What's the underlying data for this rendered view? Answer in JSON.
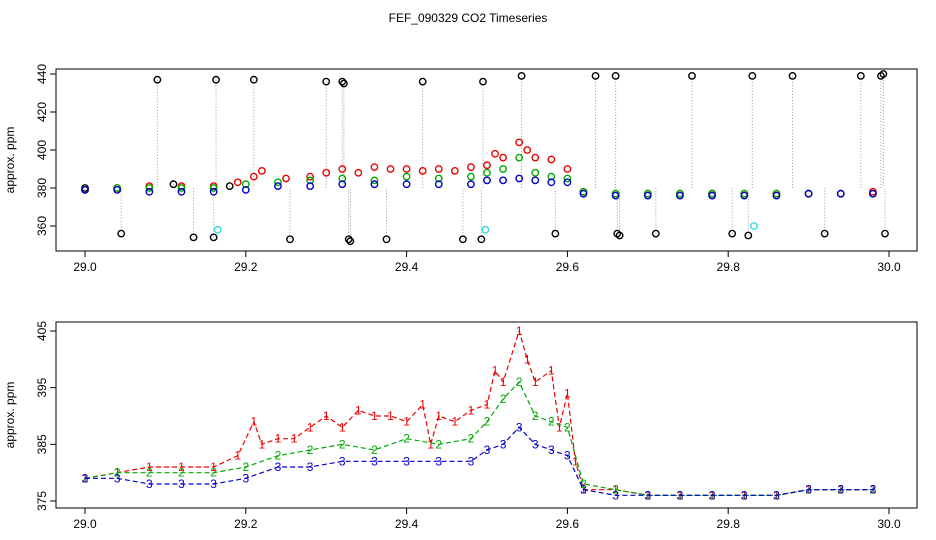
{
  "chart_data": [
    {
      "type": "scatter",
      "title": "FEF_090329  CO2 Timeseries",
      "xlabel": "",
      "ylabel": "approx. ppm",
      "xlim": [
        29.0,
        30.0
      ],
      "ylim": [
        347,
        442
      ],
      "xticks": [
        "29.0",
        "29.2",
        "29.4",
        "29.6",
        "29.8",
        "30.0"
      ],
      "yticks": [
        "360",
        "380",
        "400",
        "420",
        "440"
      ],
      "series": [
        {
          "name": "black",
          "color": "#000000",
          "x": [
            29.0,
            29.045,
            29.09,
            29.11,
            29.135,
            29.16,
            29.163,
            29.18,
            29.21,
            29.255,
            29.3,
            29.32,
            29.322,
            29.328,
            29.33,
            29.375,
            29.42,
            29.47,
            29.493,
            29.495,
            29.543,
            29.585,
            29.635,
            29.66,
            29.662,
            29.665,
            29.71,
            29.755,
            29.78,
            29.805,
            29.825,
            29.83,
            29.88,
            29.92,
            29.965,
            29.99,
            29.993,
            29.995
          ],
          "y": [
            380,
            356,
            437,
            382,
            354,
            354,
            437,
            381,
            437,
            353,
            436,
            436,
            435,
            353,
            352,
            353,
            436,
            353,
            353,
            436,
            439,
            356,
            439,
            439,
            356,
            355,
            356,
            439,
            377,
            356,
            355,
            439,
            439,
            356,
            439,
            439,
            440,
            356
          ]
        },
        {
          "name": "cyan",
          "color": "#33dddd",
          "x": [
            29.165,
            29.498,
            29.832
          ],
          "y": [
            358,
            358,
            360
          ]
        },
        {
          "name": "red",
          "color": "#ee0000",
          "x": [
            29.0,
            29.04,
            29.08,
            29.12,
            29.16,
            29.19,
            29.21,
            29.22,
            29.25,
            29.28,
            29.3,
            29.32,
            29.34,
            29.36,
            29.38,
            29.4,
            29.42,
            29.44,
            29.46,
            29.48,
            29.5,
            29.51,
            29.52,
            29.54,
            29.55,
            29.56,
            29.58,
            29.6,
            29.62,
            29.66,
            29.7,
            29.74,
            29.78,
            29.82,
            29.86,
            29.9,
            29.94,
            29.98
          ],
          "y": [
            379,
            380,
            381,
            381,
            381,
            383,
            386,
            389,
            385,
            386,
            388,
            390,
            388,
            391,
            390,
            390,
            389,
            390,
            389,
            391,
            392,
            398,
            396,
            404,
            400,
            396,
            395,
            390,
            378,
            377,
            377,
            377,
            377,
            377,
            377,
            377,
            377,
            378
          ]
        },
        {
          "name": "green",
          "color": "#00aa00",
          "x": [
            29.0,
            29.04,
            29.08,
            29.12,
            29.16,
            29.2,
            29.24,
            29.28,
            29.32,
            29.36,
            29.4,
            29.44,
            29.48,
            29.5,
            29.52,
            29.54,
            29.56,
            29.58,
            29.6,
            29.62,
            29.66,
            29.7,
            29.74,
            29.78,
            29.82,
            29.86,
            29.9,
            29.94,
            29.98
          ],
          "y": [
            379,
            380,
            380,
            380,
            380,
            382,
            383,
            384,
            385,
            384,
            386,
            385,
            386,
            388,
            390,
            396,
            388,
            386,
            385,
            378,
            377,
            377,
            377,
            377,
            377,
            377,
            377,
            377,
            377
          ]
        },
        {
          "name": "blue",
          "color": "#0000cc",
          "x": [
            29.0,
            29.04,
            29.08,
            29.12,
            29.16,
            29.2,
            29.24,
            29.28,
            29.32,
            29.36,
            29.4,
            29.44,
            29.48,
            29.5,
            29.52,
            29.54,
            29.56,
            29.58,
            29.6,
            29.62,
            29.66,
            29.7,
            29.74,
            29.78,
            29.82,
            29.86,
            29.9,
            29.94,
            29.98
          ],
          "y": [
            379,
            379,
            378,
            378,
            378,
            379,
            381,
            381,
            382,
            382,
            382,
            382,
            382,
            384,
            384,
            385,
            384,
            383,
            383,
            377,
            376,
            376,
            376,
            376,
            376,
            376,
            377,
            377,
            377
          ]
        }
      ]
    },
    {
      "type": "line",
      "title": "",
      "xlabel": "",
      "ylabel": "approx. ppm",
      "xlim": [
        29.0,
        30.0
      ],
      "ylim": [
        375,
        406
      ],
      "xticks": [
        "29.0",
        "29.2",
        "29.4",
        "29.6",
        "29.8",
        "30.0"
      ],
      "yticks": [
        "375",
        "385",
        "395",
        "405"
      ],
      "series": [
        {
          "name": "1",
          "color": "#ee0000",
          "x": [
            29.0,
            29.04,
            29.08,
            29.12,
            29.16,
            29.19,
            29.21,
            29.22,
            29.24,
            29.26,
            29.28,
            29.3,
            29.32,
            29.34,
            29.36,
            29.38,
            29.4,
            29.42,
            29.43,
            29.44,
            29.46,
            29.48,
            29.5,
            29.51,
            29.52,
            29.54,
            29.55,
            29.56,
            29.58,
            29.59,
            29.6,
            29.61,
            29.62,
            29.66,
            29.7,
            29.74,
            29.78,
            29.82,
            29.86,
            29.9,
            29.94,
            29.98
          ],
          "y": [
            379,
            380,
            381,
            381,
            381,
            383,
            389,
            385,
            386,
            386,
            388,
            390,
            388,
            391,
            390,
            390,
            389,
            392,
            385,
            390,
            389,
            391,
            392,
            398,
            396,
            405,
            400,
            396,
            398,
            388,
            394,
            382,
            377,
            377,
            376,
            376,
            376,
            376,
            376,
            377,
            377,
            377
          ]
        },
        {
          "name": "2",
          "color": "#00aa00",
          "x": [
            29.0,
            29.04,
            29.08,
            29.12,
            29.16,
            29.2,
            29.24,
            29.28,
            29.32,
            29.36,
            29.4,
            29.44,
            29.48,
            29.5,
            29.52,
            29.54,
            29.56,
            29.58,
            29.6,
            29.62,
            29.66,
            29.7,
            29.74,
            29.78,
            29.82,
            29.86,
            29.9,
            29.94,
            29.98
          ],
          "y": [
            379,
            380,
            380,
            380,
            380,
            381,
            383,
            384,
            385,
            384,
            386,
            385,
            386,
            389,
            393,
            396,
            390,
            389,
            388,
            378,
            377,
            376,
            376,
            376,
            376,
            376,
            377,
            377,
            377
          ]
        },
        {
          "name": "3",
          "color": "#0000cc",
          "x": [
            29.0,
            29.04,
            29.08,
            29.12,
            29.16,
            29.2,
            29.24,
            29.28,
            29.32,
            29.36,
            29.4,
            29.44,
            29.48,
            29.5,
            29.52,
            29.54,
            29.56,
            29.58,
            29.6,
            29.62,
            29.66,
            29.7,
            29.74,
            29.78,
            29.82,
            29.86,
            29.9,
            29.94,
            29.98
          ],
          "y": [
            379,
            379,
            378,
            378,
            378,
            379,
            381,
            381,
            382,
            382,
            382,
            382,
            382,
            384,
            385,
            388,
            385,
            384,
            383,
            377,
            376,
            376,
            376,
            376,
            376,
            376,
            377,
            377,
            377
          ]
        }
      ]
    }
  ]
}
